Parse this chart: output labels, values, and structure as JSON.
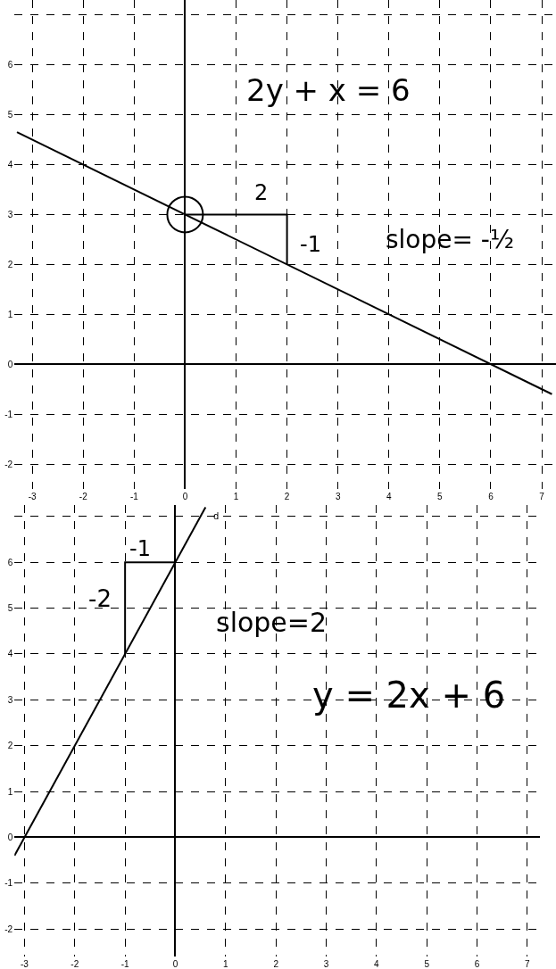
{
  "chart_data": [
    {
      "type": "line",
      "xlim": [
        -3.35,
        7.28
      ],
      "ylim": [
        -2.5,
        7.3
      ],
      "xticks": [
        -3,
        -2,
        -1,
        0,
        1,
        2,
        3,
        4,
        5,
        6,
        7
      ],
      "yticks": [
        -2,
        -1,
        0,
        1,
        2,
        3,
        4,
        5,
        6,
        {
          "value": 7,
          "label": null
        }
      ],
      "grid": true,
      "series": [
        {
          "color": "#000000",
          "x": [
            -3.3,
            7.2
          ],
          "values": [
            4.65,
            -0.6
          ]
        },
        {
          "color": "#000000",
          "x": [
            0,
            2,
            2
          ],
          "values": [
            3,
            3,
            2
          ]
        },
        {
          "type": "scatter",
          "color": "#000000",
          "marker": "circle",
          "x": [
            0
          ],
          "values": [
            3
          ]
        }
      ],
      "annotations": [
        "2y + x = 6",
        "2",
        "-1",
        "slope= -½"
      ]
    },
    {
      "type": "line",
      "xlim": [
        -3.2,
        7.25
      ],
      "ylim": [
        -2.6,
        7.25
      ],
      "xticks": [
        -3,
        -2,
        -1,
        0,
        1,
        2,
        3,
        4,
        5,
        6,
        7
      ],
      "yticks": [
        -2,
        -1,
        0,
        1,
        2,
        3,
        4,
        5,
        6,
        {
          "value": 7,
          "label": null
        }
      ],
      "grid": true,
      "series": [
        {
          "color": "#000000",
          "x": [
            -3.2,
            0.6
          ],
          "values": [
            -0.4,
            7.2
          ]
        },
        {
          "color": "#000000",
          "x": [
            0,
            -1,
            -1
          ],
          "values": [
            6,
            6,
            4
          ]
        }
      ],
      "annotations": [
        "-1",
        "-2",
        "slope=2",
        "y = 2x + 6",
        "d"
      ]
    }
  ]
}
